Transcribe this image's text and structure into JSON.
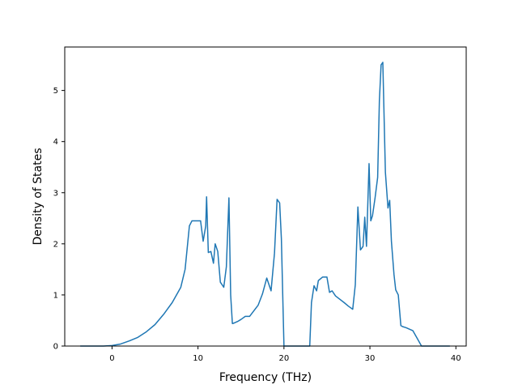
{
  "chart_data": {
    "type": "line",
    "title": "",
    "xlabel": "Frequency (THz)",
    "ylabel": "Density of States",
    "xlim": [
      -5.5,
      41.2
    ],
    "ylim": [
      0,
      5.85
    ],
    "xticks": [
      0,
      10,
      20,
      30,
      40
    ],
    "yticks": [
      0,
      1,
      2,
      3,
      4,
      5
    ],
    "grid": false,
    "legend": "none",
    "line_color": "#1f77b4",
    "series": [
      {
        "x": [
          -3.7,
          -1.0,
          0.0,
          1.0,
          2.0,
          3.0,
          4.0,
          5.0,
          6.0,
          7.0,
          8.0,
          8.5,
          9.0,
          9.3,
          9.6,
          9.9,
          10.3,
          10.6,
          10.9,
          11.0,
          11.2,
          11.5,
          11.8,
          12.0,
          12.3,
          12.6,
          13.0,
          13.3,
          13.6,
          13.8,
          14.0,
          14.2,
          14.6,
          15.0,
          15.5,
          16.0,
          17.0,
          17.5,
          18.0,
          18.5,
          18.9,
          19.2,
          19.5,
          19.7,
          20.0,
          22.0,
          23.0,
          23.2,
          23.5,
          23.8,
          24.0,
          24.5,
          25.0,
          25.3,
          25.6,
          26.0,
          27.0,
          27.5,
          28.0,
          28.3,
          28.6,
          28.9,
          29.2,
          29.4,
          29.6,
          29.9,
          30.1,
          30.3,
          30.6,
          30.9,
          31.1,
          31.3,
          31.5,
          31.8,
          32.1,
          32.3,
          32.5,
          32.8,
          33.0,
          33.3,
          33.6,
          33.8,
          34.2,
          35.0,
          35.5,
          36.0,
          37.0,
          38.0,
          39.3
        ],
        "values": [
          0,
          0,
          0.01,
          0.04,
          0.1,
          0.17,
          0.28,
          0.42,
          0.62,
          0.85,
          1.15,
          1.5,
          2.35,
          2.45,
          2.45,
          2.45,
          2.45,
          2.05,
          2.35,
          2.92,
          1.83,
          1.85,
          1.62,
          2.0,
          1.85,
          1.25,
          1.15,
          1.55,
          2.9,
          1.0,
          0.44,
          0.45,
          0.48,
          0.52,
          0.58,
          0.58,
          0.8,
          1.02,
          1.33,
          1.08,
          1.82,
          2.87,
          2.8,
          2.1,
          0,
          0,
          0,
          0.85,
          1.18,
          1.08,
          1.28,
          1.35,
          1.35,
          1.05,
          1.08,
          0.98,
          0.85,
          0.78,
          0.72,
          1.2,
          2.72,
          1.88,
          1.95,
          2.52,
          1.95,
          3.57,
          2.45,
          2.55,
          2.9,
          3.3,
          4.8,
          5.5,
          5.55,
          3.4,
          2.7,
          2.85,
          2.05,
          1.4,
          1.1,
          1.0,
          0.4,
          0.38,
          0.36,
          0.3,
          0.15,
          0,
          0,
          0,
          0
        ]
      }
    ]
  }
}
